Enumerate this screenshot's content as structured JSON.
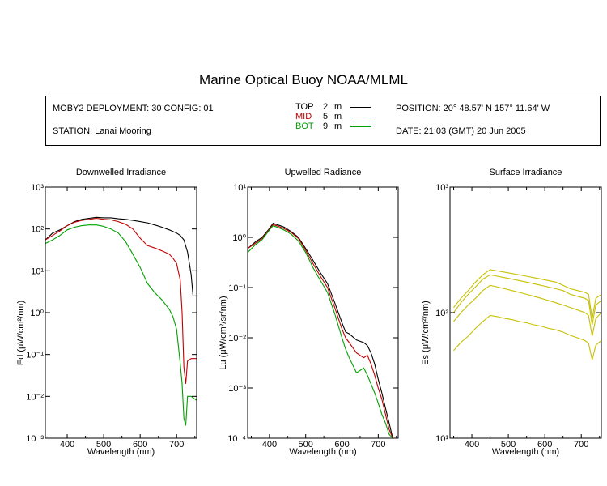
{
  "title": "Marine Optical Buoy NOAA/MLML",
  "info": {
    "deployment": "MOBY2 DEPLOYMENT: 30 CONFIG: 01",
    "station": "STATION: Lanai Mooring",
    "position": "POSITION: 20° 48.57' N   157° 11.64' W",
    "date": "DATE: 21:03 (GMT) 20 Jun 2005"
  },
  "legend": [
    {
      "label": "TOP",
      "depth": "2",
      "unit": "m",
      "color": "#000000"
    },
    {
      "label": "MID",
      "depth": "5",
      "unit": "m",
      "color": "#c00000"
    },
    {
      "label": "BOT",
      "depth": "9",
      "unit": "m",
      "color": "#00a000"
    }
  ],
  "chart_data": [
    {
      "type": "line",
      "title": "Downwelled Irradiance",
      "xlabel": "Wavelength (nm)",
      "ylabel": "Ed  (μW/cm²/nm)",
      "xlim": [
        340,
        755
      ],
      "ylim": [
        0.001,
        1000
      ],
      "yscale": "log",
      "xticks": [
        400,
        500,
        600,
        700
      ],
      "yticks": [
        "10⁻³",
        "10⁻²",
        "10⁻¹",
        "10⁰",
        "10¹",
        "10²",
        "10³"
      ],
      "series": [
        {
          "name": "TOP",
          "color": "#000000",
          "x": [
            340,
            360,
            380,
            400,
            420,
            440,
            460,
            480,
            500,
            520,
            540,
            560,
            580,
            600,
            620,
            640,
            660,
            680,
            700,
            710,
            720,
            730,
            740,
            745,
            755
          ],
          "y": [
            55,
            80,
            95,
            120,
            150,
            170,
            180,
            190,
            185,
            185,
            175,
            170,
            160,
            150,
            140,
            125,
            110,
            95,
            80,
            70,
            55,
            28,
            8,
            2.5,
            2.5
          ]
        },
        {
          "name": "MID",
          "color": "#c00000",
          "x": [
            340,
            360,
            380,
            400,
            420,
            440,
            460,
            480,
            500,
            520,
            540,
            560,
            580,
            600,
            620,
            640,
            660,
            680,
            690,
            700,
            710,
            715,
            720,
            725,
            730,
            740,
            755
          ],
          "y": [
            55,
            70,
            90,
            120,
            145,
            160,
            170,
            180,
            170,
            165,
            150,
            130,
            100,
            60,
            40,
            35,
            30,
            25,
            20,
            15,
            6,
            1,
            0.05,
            0.02,
            0.07,
            0.08,
            0.08
          ]
        },
        {
          "name": "BOT",
          "color": "#00a000",
          "x": [
            340,
            360,
            380,
            400,
            420,
            440,
            460,
            480,
            500,
            520,
            540,
            560,
            580,
            600,
            620,
            640,
            660,
            680,
            690,
            700,
            710,
            715,
            720,
            725,
            730,
            740,
            755
          ],
          "y": [
            45,
            55,
            70,
            95,
            110,
            120,
            125,
            125,
            115,
            100,
            80,
            50,
            25,
            12,
            5,
            3,
            2,
            1.2,
            0.8,
            0.4,
            0.06,
            0.02,
            0.003,
            0.002,
            0.01,
            0.01,
            0.008
          ]
        }
      ]
    },
    {
      "type": "line",
      "title": "Upwelled Radiance",
      "xlabel": "Wavelength (nm)",
      "ylabel": "Lu  (μW/cm²/sr/nm)",
      "xlim": [
        340,
        755
      ],
      "ylim": [
        0.0001,
        10
      ],
      "yscale": "log",
      "xticks": [
        400,
        500,
        600,
        700
      ],
      "yticks": [
        "10⁻⁴",
        "10⁻³",
        "10⁻²",
        "10⁻¹",
        "10⁰",
        "10¹"
      ],
      "series": [
        {
          "name": "TOP",
          "color": "#000000",
          "x": [
            340,
            360,
            380,
            400,
            410,
            420,
            440,
            460,
            480,
            500,
            520,
            540,
            560,
            580,
            600,
            610,
            620,
            640,
            660,
            670,
            680,
            690,
            700,
            710,
            720,
            730,
            740
          ],
          "y": [
            0.6,
            0.8,
            1.0,
            1.5,
            1.9,
            1.8,
            1.6,
            1.3,
            1.0,
            0.6,
            0.35,
            0.2,
            0.12,
            0.05,
            0.02,
            0.013,
            0.012,
            0.009,
            0.008,
            0.007,
            0.005,
            0.003,
            0.0015,
            0.0008,
            0.0004,
            0.0002,
            0.0001
          ]
        },
        {
          "name": "MID",
          "color": "#c00000",
          "x": [
            340,
            360,
            380,
            400,
            410,
            420,
            440,
            460,
            480,
            500,
            520,
            540,
            560,
            580,
            600,
            610,
            620,
            640,
            660,
            670,
            680,
            690,
            700,
            710,
            720,
            730,
            740
          ],
          "y": [
            0.6,
            0.75,
            0.95,
            1.45,
            1.8,
            1.7,
            1.5,
            1.25,
            0.95,
            0.55,
            0.3,
            0.17,
            0.1,
            0.04,
            0.015,
            0.01,
            0.008,
            0.005,
            0.004,
            0.0045,
            0.003,
            0.0018,
            0.001,
            0.0006,
            0.0003,
            0.00015,
            0.0001
          ]
        },
        {
          "name": "BOT",
          "color": "#00a000",
          "x": [
            340,
            360,
            380,
            400,
            410,
            420,
            440,
            460,
            480,
            500,
            520,
            540,
            560,
            580,
            600,
            610,
            620,
            640,
            660,
            670,
            680,
            690,
            700,
            710,
            720,
            730,
            740
          ],
          "y": [
            0.5,
            0.7,
            0.9,
            1.4,
            1.7,
            1.6,
            1.4,
            1.15,
            0.85,
            0.5,
            0.25,
            0.14,
            0.08,
            0.03,
            0.01,
            0.006,
            0.004,
            0.002,
            0.0025,
            0.0018,
            0.0012,
            0.0008,
            0.0005,
            0.0003,
            0.0002,
            0.00012,
            0.0001
          ]
        }
      ]
    },
    {
      "type": "line",
      "title": "Surface Irradiance",
      "xlabel": "Wavelength (nm)",
      "ylabel": "Es  (μW/cm²/nm)",
      "xlim": [
        340,
        755
      ],
      "ylim": [
        10,
        1000
      ],
      "yscale": "log",
      "xticks": [
        400,
        500,
        600,
        700
      ],
      "yticks": [
        "10¹",
        "10²",
        "10³"
      ],
      "series": [
        {
          "color": "#c8c000",
          "x": [
            350,
            370,
            390,
            410,
            430,
            450,
            470,
            490,
            510,
            530,
            550,
            570,
            590,
            610,
            630,
            650,
            670,
            690,
            710,
            720,
            730,
            740,
            755
          ],
          "y": [
            110,
            130,
            150,
            175,
            200,
            220,
            215,
            210,
            205,
            200,
            195,
            190,
            185,
            180,
            175,
            165,
            155,
            150,
            145,
            140,
            90,
            130,
            140
          ]
        },
        {
          "color": "#c8c000",
          "x": [
            350,
            370,
            390,
            410,
            430,
            450,
            470,
            490,
            510,
            530,
            550,
            570,
            590,
            610,
            630,
            650,
            670,
            690,
            710,
            720,
            730,
            740,
            755
          ],
          "y": [
            100,
            120,
            140,
            160,
            185,
            200,
            195,
            190,
            185,
            180,
            175,
            170,
            165,
            160,
            155,
            150,
            140,
            135,
            130,
            125,
            80,
            115,
            125
          ]
        },
        {
          "color": "#c8c000",
          "x": [
            350,
            370,
            390,
            410,
            430,
            450,
            470,
            490,
            510,
            530,
            550,
            570,
            590,
            610,
            630,
            650,
            670,
            690,
            710,
            720,
            730,
            740,
            755
          ],
          "y": [
            85,
            100,
            115,
            130,
            150,
            165,
            160,
            155,
            150,
            145,
            140,
            135,
            130,
            125,
            120,
            115,
            110,
            105,
            100,
            95,
            65,
            90,
            100
          ]
        },
        {
          "color": "#c8c000",
          "x": [
            350,
            370,
            390,
            410,
            430,
            450,
            470,
            490,
            510,
            530,
            550,
            570,
            590,
            610,
            630,
            650,
            670,
            690,
            710,
            720,
            730,
            740,
            755
          ],
          "y": [
            50,
            58,
            65,
            75,
            85,
            95,
            93,
            90,
            88,
            85,
            83,
            80,
            78,
            75,
            73,
            70,
            66,
            63,
            60,
            57,
            42,
            55,
            60
          ]
        }
      ]
    }
  ]
}
